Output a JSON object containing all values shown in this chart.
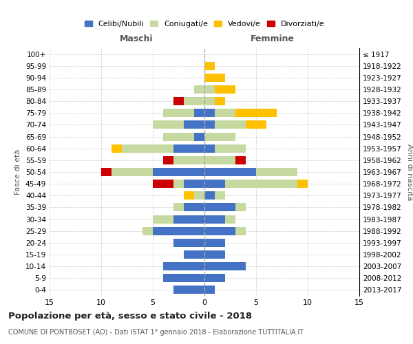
{
  "age_groups": [
    "100+",
    "95-99",
    "90-94",
    "85-89",
    "80-84",
    "75-79",
    "70-74",
    "65-69",
    "60-64",
    "55-59",
    "50-54",
    "45-49",
    "40-44",
    "35-39",
    "30-34",
    "25-29",
    "20-24",
    "15-19",
    "10-14",
    "5-9",
    "0-4"
  ],
  "birth_years": [
    "≤ 1917",
    "1918-1922",
    "1923-1927",
    "1928-1932",
    "1933-1937",
    "1938-1942",
    "1943-1947",
    "1948-1952",
    "1953-1957",
    "1958-1962",
    "1963-1967",
    "1968-1972",
    "1973-1977",
    "1978-1982",
    "1983-1987",
    "1988-1992",
    "1993-1997",
    "1998-2002",
    "2003-2007",
    "2008-2012",
    "2013-2017"
  ],
  "maschi": {
    "celibi": [
      0,
      0,
      0,
      0,
      0,
      1,
      2,
      1,
      3,
      0,
      5,
      2,
      0,
      2,
      3,
      5,
      3,
      2,
      4,
      4,
      3
    ],
    "coniugati": [
      0,
      0,
      0,
      1,
      2,
      3,
      3,
      3,
      5,
      3,
      4,
      1,
      1,
      1,
      2,
      1,
      0,
      0,
      0,
      0,
      0
    ],
    "vedovi": [
      0,
      0,
      0,
      0,
      0,
      0,
      0,
      0,
      1,
      0,
      0,
      0,
      1,
      0,
      0,
      0,
      0,
      0,
      0,
      0,
      0
    ],
    "divorziati": [
      0,
      0,
      0,
      0,
      1,
      0,
      0,
      0,
      0,
      1,
      1,
      2,
      0,
      0,
      0,
      0,
      0,
      0,
      0,
      0,
      0
    ]
  },
  "femmine": {
    "nubili": [
      0,
      0,
      0,
      0,
      0,
      1,
      1,
      0,
      1,
      0,
      5,
      2,
      1,
      3,
      2,
      3,
      2,
      2,
      4,
      2,
      1
    ],
    "coniugate": [
      0,
      0,
      0,
      1,
      1,
      2,
      3,
      3,
      3,
      3,
      4,
      7,
      1,
      1,
      1,
      1,
      0,
      0,
      0,
      0,
      0
    ],
    "vedove": [
      0,
      1,
      2,
      2,
      1,
      4,
      2,
      0,
      0,
      0,
      0,
      1,
      0,
      0,
      0,
      0,
      0,
      0,
      0,
      0,
      0
    ],
    "divorziate": [
      0,
      0,
      0,
      0,
      0,
      0,
      0,
      0,
      0,
      1,
      0,
      0,
      0,
      0,
      0,
      0,
      0,
      0,
      0,
      0,
      0
    ]
  },
  "colors": {
    "celibi": "#4472c4",
    "coniugati": "#c5d9a0",
    "vedovi": "#ffc000",
    "divorziati": "#cc0000"
  },
  "title": "Popolazione per età, sesso e stato civile - 2018",
  "subtitle": "COMUNE DI PONTBOSET (AO) - Dati ISTAT 1° gennaio 2018 - Elaborazione TUTTITALIA.IT",
  "xlabel_left": "Maschi",
  "xlabel_right": "Femmine",
  "ylabel_left": "Fasce di età",
  "ylabel_right": "Anni di nascita",
  "xlim": 15,
  "legend_labels": [
    "Celibi/Nubili",
    "Coniugati/e",
    "Vedovi/e",
    "Divorziati/e"
  ],
  "background_color": "#ffffff",
  "grid_color": "#cccccc"
}
